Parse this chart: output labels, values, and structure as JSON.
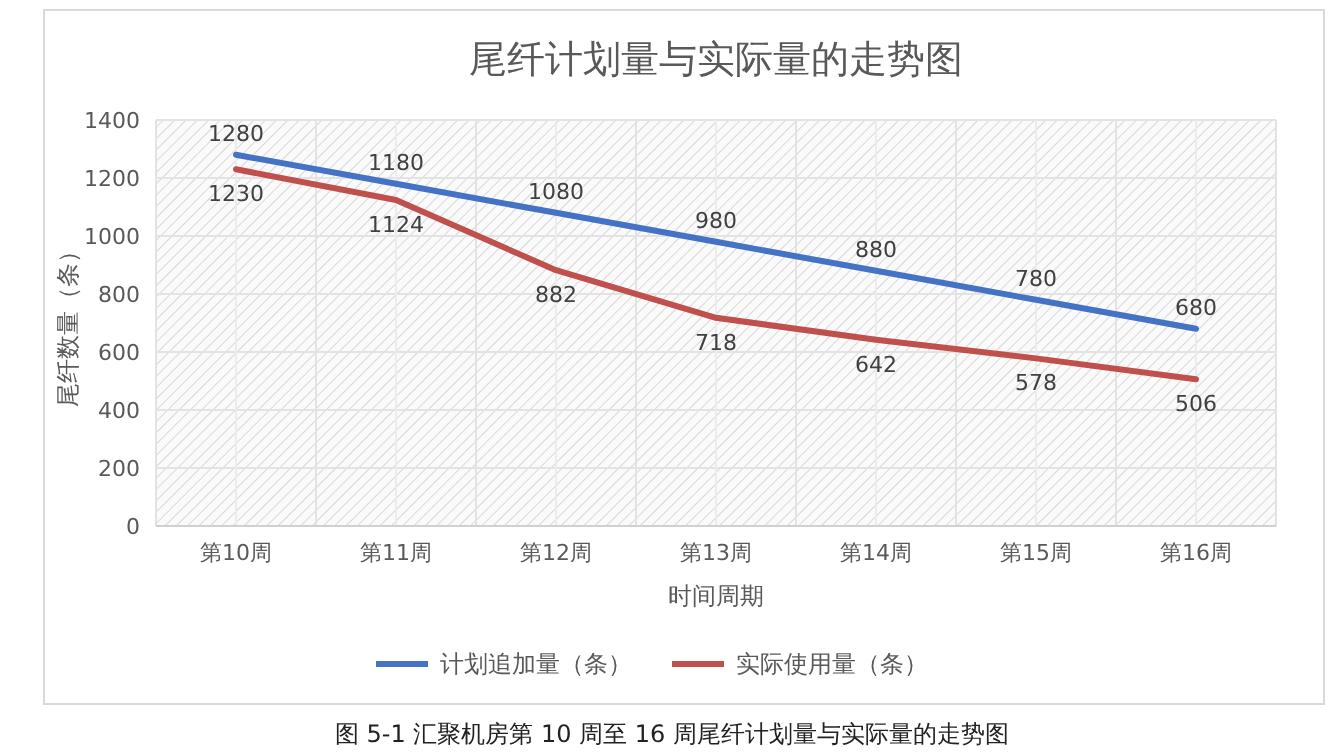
{
  "chart_data": {
    "type": "line",
    "title": "尾纤计划量与实际量的走势图",
    "xlabel": "时间周期",
    "ylabel": "尾纤数量（条）",
    "categories": [
      "第10周",
      "第11周",
      "第12周",
      "第13周",
      "第14周",
      "第15周",
      "第16周"
    ],
    "series": [
      {
        "name": "计划追加量（条）",
        "color": "#4472c4",
        "values": [
          1280,
          1180,
          1080,
          980,
          880,
          780,
          680
        ]
      },
      {
        "name": "实际使用量（条）",
        "color": "#c0504d",
        "values": [
          1230,
          1124,
          882,
          718,
          642,
          578,
          506
        ]
      }
    ],
    "ylim": [
      0,
      1400
    ],
    "yticks": [
      0,
      200,
      400,
      600,
      800,
      1000,
      1200,
      1400
    ],
    "grid": true,
    "legend": "bottom",
    "data_labels": true,
    "annotations": [
      "图 5-1 汇聚机房第 10 周至 16 周尾纤计划量与实际量的走势图"
    ]
  }
}
